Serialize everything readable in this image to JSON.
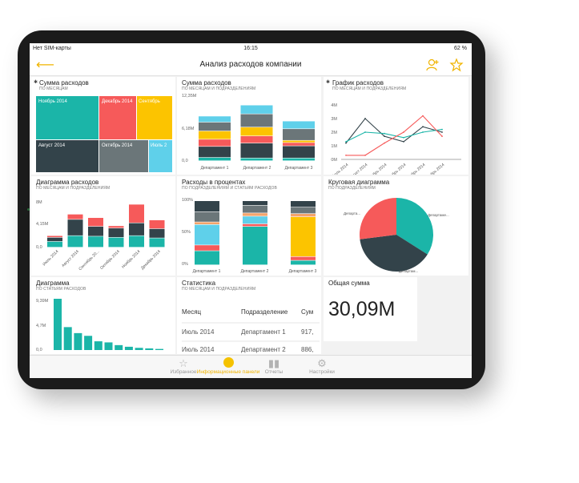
{
  "status": {
    "carrier": "Нет SIM-карты",
    "time": "16:15",
    "battery": "62 %"
  },
  "header": {
    "title": "Анализ расходов компании"
  },
  "colors": {
    "teal": "#1bb5a8",
    "red": "#f65a5a",
    "yellow": "#fcc400",
    "dark": "#33434a",
    "gray": "#6b7679",
    "blue": "#5fd0ea",
    "orange": "#f5a46b",
    "accent": "#f0b400"
  },
  "tiles": {
    "treemap": {
      "title": "Сумма расходов",
      "subtitle": "ПО МЕСЯЦАМ",
      "cells": [
        {
          "label": "Ноябрь 2014",
          "color": "#1bb5a8"
        },
        {
          "label": "Декабрь 2014",
          "color": "#f65a5a"
        },
        {
          "label": "Сентябрь",
          "color": "#fcc400"
        },
        {
          "label": "Август 2014",
          "color": "#33434a"
        },
        {
          "label": "Октябрь 2014",
          "color": "#6b7679"
        },
        {
          "label": "Июль 2",
          "color": "#5fd0ea"
        }
      ]
    },
    "stacked_bar": {
      "title": "Сумма расходов",
      "subtitle": "ПО МЕСЯЦАМ И ПОДРАЗДЕЛЕНИЯМ",
      "y_ticks": [
        "12,35M",
        "6,18M",
        "0,0"
      ],
      "categories": [
        "Департамент 1",
        "Департамент 2",
        "Департамент 3"
      ]
    },
    "line_chart": {
      "title": "График расходов",
      "subtitle": "ПО МЕСЯЦАМ И ПОДРАЗДЕЛЕНИЯМ",
      "y_ticks": [
        "4M",
        "3M",
        "2M",
        "1M",
        "0M"
      ],
      "x_ticks": [
        "Июль 2014",
        "Август 2014",
        "Сентябрь 2014",
        "Октябрь 2014",
        "Ноябрь 2014",
        "Декабрь 2014"
      ]
    },
    "column_chart": {
      "title": "Диаграмма расходов",
      "subtitle": "ПО МЕСЯЦАМ И ПОДРАЗДЕЛЕНИЯМ",
      "y_ticks": [
        "8M",
        "4,15M",
        "0,0"
      ],
      "x_ticks": [
        "Июль 2014",
        "Август 2014",
        "Сентябрь 20...",
        "Октябрь 2014",
        "Ноябрь 2014",
        "Декабрь 2014"
      ]
    },
    "percent_bar": {
      "title": "Расходы в процентах",
      "subtitle": "ПО ПОДРАЗДЕЛЕНИЯМ И СТАТЬЯМ РАСХОДОВ",
      "y_ticks": [
        "100%",
        "50%",
        "0%"
      ],
      "categories": [
        "Департамент 1",
        "Департамент 2",
        "Департамент 3"
      ]
    },
    "pie": {
      "title": "Круговая диаграмма",
      "subtitle": "ПО ПОДРАЗДЕЛЕНИЯМ",
      "labels": [
        "Департа...",
        "Департаме...",
        "Департам..."
      ]
    },
    "pareto": {
      "title": "Диаграмма",
      "subtitle": "ПО СТАТЬЯМ РАСХОДОВ",
      "y_ticks": [
        "9,39M",
        "4,7M",
        "0,0"
      ]
    },
    "stats": {
      "title": "Статистика",
      "subtitle": "ПО МЕСЯЦАМ И ПОДРАЗДЕЛЕНИЯМ",
      "headers": [
        "Месяц",
        "Подразделение",
        "Сум"
      ],
      "rows": [
        [
          "Июль 2014",
          "Департамент 1",
          "917,"
        ],
        [
          "Июль 2014",
          "Департамент 2",
          "886,"
        ]
      ]
    },
    "total": {
      "title": "Общая сумма",
      "value": "30,09M"
    }
  },
  "tabs": [
    {
      "label": "Избранное",
      "icon": "star-icon"
    },
    {
      "label": "Информационные панели",
      "icon": "dashboard-icon"
    },
    {
      "label": "Отчеты",
      "icon": "bar-chart-icon"
    },
    {
      "label": "Настройки",
      "icon": "gear-icon"
    }
  ],
  "chart_data": [
    {
      "type": "bar",
      "title": "Сумма расходов",
      "subtitle": "ПО МЕСЯЦАМ И ПОДРАЗДЕЛЕНИЯМ",
      "categories": [
        "Департамент 1",
        "Департамент 2",
        "Департамент 3"
      ],
      "stacked": true,
      "ylim": [
        0,
        12.35
      ],
      "series": [
        {
          "color": "#1bb5a8",
          "values": [
            0.6,
            0.5,
            0.5
          ]
        },
        {
          "color": "#33434a",
          "values": [
            2.0,
            2.7,
            2.2
          ]
        },
        {
          "color": "#f65a5a",
          "values": [
            1.3,
            1.3,
            0.6
          ]
        },
        {
          "color": "#fcc400",
          "values": [
            1.5,
            1.6,
            0.4
          ]
        },
        {
          "color": "#6b7679",
          "values": [
            1.6,
            2.4,
            2.1
          ]
        },
        {
          "color": "#5fd0ea",
          "values": [
            1.1,
            1.6,
            1.4
          ]
        }
      ]
    },
    {
      "type": "line",
      "title": "График расходов",
      "subtitle": "ПО МЕСЯЦАМ И ПОДРАЗДЕЛЕНИЯМ",
      "x": [
        "Июль 2014",
        "Август 2014",
        "Сентябрь 2014",
        "Октябрь 2014",
        "Ноябрь 2014",
        "Декабрь 2014"
      ],
      "ylim": [
        0,
        4
      ],
      "series": [
        {
          "color": "#33434a",
          "values": [
            1.2,
            3.0,
            1.7,
            1.3,
            2.4,
            2.0
          ]
        },
        {
          "color": "#1bb5a8",
          "values": [
            1.3,
            2.0,
            1.9,
            1.6,
            2.0,
            2.2
          ]
        },
        {
          "color": "#f65a5a",
          "values": [
            0.3,
            0.3,
            1.2,
            2.0,
            3.2,
            1.7
          ]
        }
      ]
    },
    {
      "type": "bar",
      "title": "Диаграмма расходов",
      "subtitle": "ПО МЕСЯЦАМ И ПОДРАЗДЕЛЕНИЯМ",
      "categories": [
        "Июль 2014",
        "Август 2014",
        "Сентябрь 20...",
        "Октябрь 2014",
        "Ноябрь 2014",
        "Декабрь 2014"
      ],
      "stacked": true,
      "ylim": [
        0,
        8
      ],
      "series": [
        {
          "color": "#1bb5a8",
          "values": [
            1.0,
            2.0,
            1.9,
            1.7,
            2.0,
            1.6
          ]
        },
        {
          "color": "#33434a",
          "values": [
            0.7,
            2.8,
            1.7,
            1.6,
            2.2,
            1.6
          ]
        },
        {
          "color": "#f65a5a",
          "values": [
            0.3,
            0.9,
            1.5,
            0.4,
            3.2,
            1.5
          ]
        }
      ]
    },
    {
      "type": "bar",
      "title": "Расходы в процентах",
      "subtitle": "ПО ПОДРАЗДЕЛЕНИЯМ И СТАТЬЯМ РАСХОДОВ",
      "categories": [
        "Департамент 1",
        "Департамент 2",
        "Департамент 3"
      ],
      "stacked": true,
      "ylim": [
        0,
        100
      ],
      "series": [
        {
          "color": "#1bb5a8",
          "values": [
            22,
            60,
            7
          ]
        },
        {
          "color": "#f65a5a",
          "values": [
            9,
            4,
            6
          ]
        },
        {
          "color": "#5fd0ea",
          "values": [
            32,
            12,
            0
          ]
        },
        {
          "color": "#fcc400",
          "values": [
            0,
            0,
            62
          ]
        },
        {
          "color": "#f5a46b",
          "values": [
            4,
            5,
            5
          ]
        },
        {
          "color": "#6b7679",
          "values": [
            16,
            12,
            10
          ]
        },
        {
          "color": "#33434a",
          "values": [
            17,
            7,
            10
          ]
        }
      ]
    },
    {
      "type": "pie",
      "title": "Круговая диаграмма",
      "subtitle": "ПО ПОДРАЗДЕЛЕНИЯМ",
      "slices": [
        {
          "label": "Департаме...",
          "value": 34,
          "color": "#1bb5a8"
        },
        {
          "label": "Департам...",
          "value": 39,
          "color": "#33434a"
        },
        {
          "label": "Департа...",
          "value": 27,
          "color": "#f65a5a"
        }
      ]
    },
    {
      "type": "bar",
      "title": "Диаграмма",
      "subtitle": "ПО СТАТЬЯМ РАСХОДОВ",
      "ylim": [
        0,
        9.39
      ],
      "color": "#1bb5a8",
      "values": [
        9.39,
        4.2,
        3.1,
        2.6,
        1.6,
        1.4,
        0.9,
        0.6,
        0.4,
        0.3,
        0.2
      ]
    }
  ]
}
